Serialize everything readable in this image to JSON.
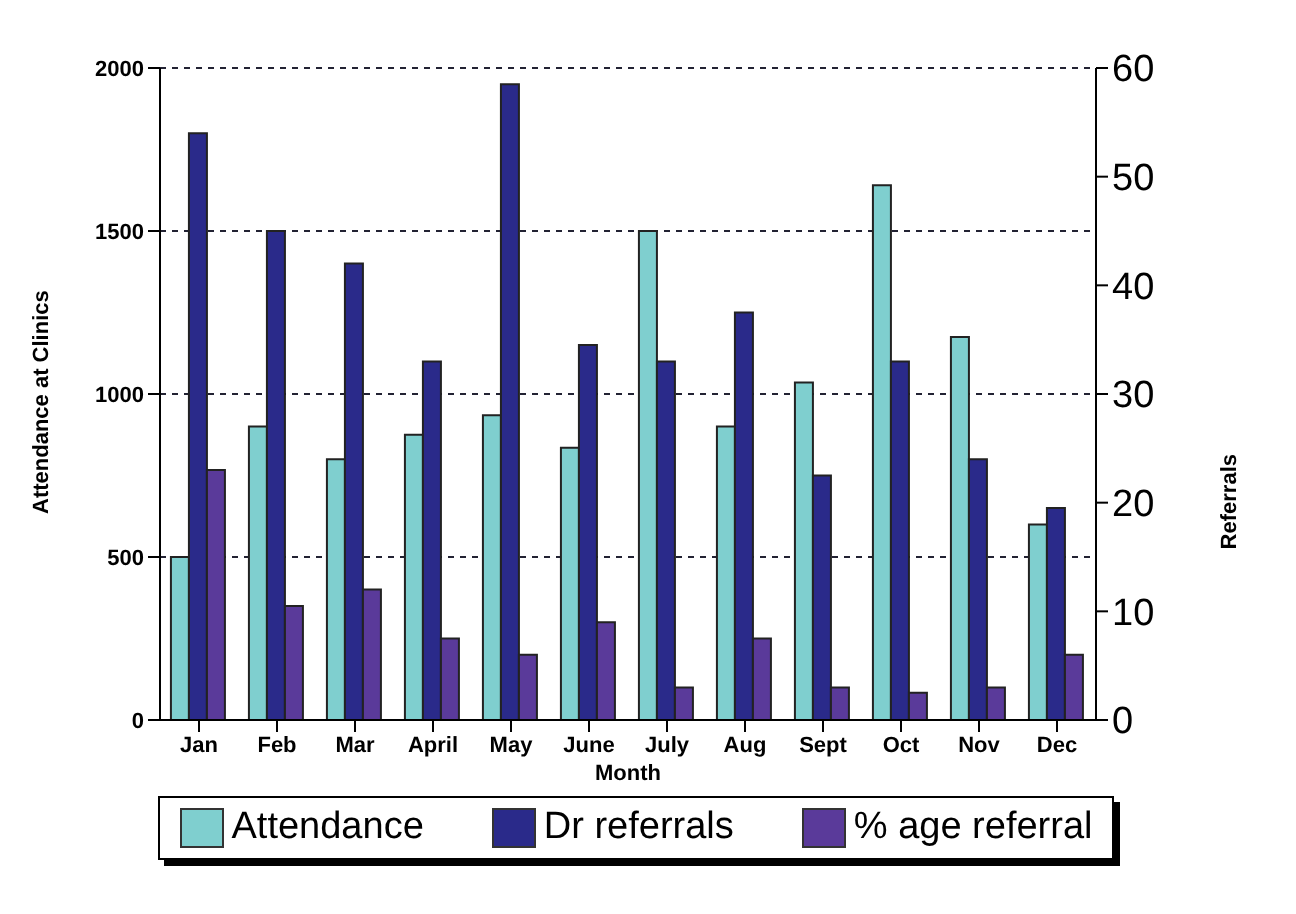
{
  "chart_data": {
    "type": "bar",
    "xlabel": "Month",
    "ylabel": "Attendance at Clinics",
    "y2label": "Referrals",
    "categories": [
      "Jan",
      "Feb",
      "Mar",
      "April",
      "May",
      "June",
      "July",
      "Aug",
      "Sept",
      "Oct",
      "Nov",
      "Dec"
    ],
    "series": [
      {
        "name": "Attendance",
        "color": "#7fcfcf",
        "values": [
          500,
          900,
          800,
          875,
          935,
          835,
          1500,
          900,
          1035,
          1640,
          1175,
          600
        ]
      },
      {
        "name": "Dr referrals",
        "color": "#2a2a8a",
        "axis": "y2",
        "values": [
          54,
          45,
          42,
          33,
          58.5,
          34.5,
          33,
          37.5,
          22.5,
          33,
          24,
          19.5
        ]
      },
      {
        "name": "% age referral",
        "color": "#5a3a9a",
        "axis": "y2",
        "values": [
          23,
          10.5,
          12,
          7.5,
          6,
          9,
          3,
          7.5,
          3,
          2.5,
          3,
          6
        ]
      }
    ],
    "ylim": [
      0,
      2000
    ],
    "yticks": [
      0,
      500,
      1000,
      1500,
      2000
    ],
    "y2lim": [
      0,
      60
    ],
    "y2ticks": [
      0,
      10,
      20,
      30,
      40,
      50,
      60
    ],
    "grid": "y",
    "legend": "bottom"
  }
}
